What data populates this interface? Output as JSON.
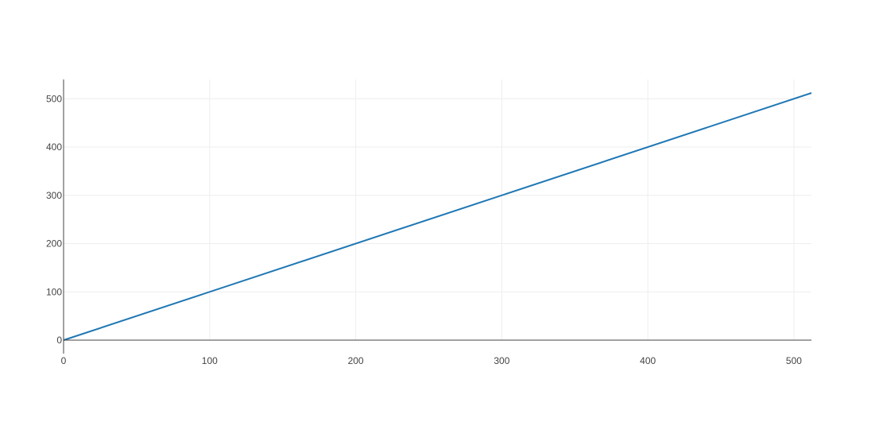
{
  "chart_data": {
    "type": "line",
    "title": "",
    "xlabel": "",
    "ylabel": "",
    "xlim": [
      0,
      512
    ],
    "ylim": [
      0,
      540
    ],
    "x_ticks": [
      0,
      100,
      200,
      300,
      400,
      500
    ],
    "y_ticks": [
      0,
      100,
      200,
      300,
      400,
      500
    ],
    "x_tick_labels": [
      "0",
      "100",
      "200",
      "300",
      "400",
      "500"
    ],
    "y_tick_labels": [
      "0",
      "100",
      "200",
      "300",
      "400",
      "500"
    ],
    "grid": true,
    "legend": "none",
    "colors": {
      "series": "#1f77b4",
      "grid": "#eeeeee",
      "axis": "#444444",
      "tick_text": "#444444"
    },
    "series": [
      {
        "x": [
          0,
          512
        ],
        "y": [
          0,
          512
        ]
      }
    ]
  }
}
